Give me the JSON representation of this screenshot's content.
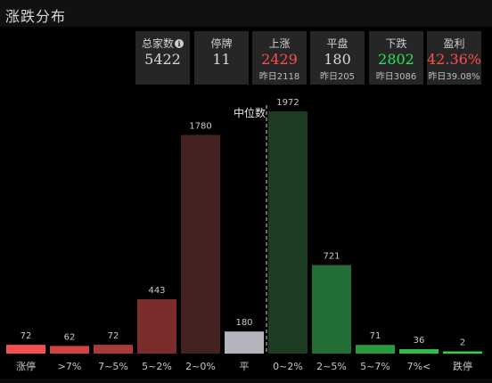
{
  "header": {
    "title": "涨跌分布"
  },
  "stats": [
    {
      "key": "total",
      "label": "总家数",
      "value": "5422",
      "sub": "",
      "color": "#d8d8d8",
      "info_icon": "info-icon"
    },
    {
      "key": "halted",
      "label": "停牌",
      "value": "11",
      "sub": "",
      "color": "#d8d8d8"
    },
    {
      "key": "up",
      "label": "上涨",
      "value": "2429",
      "sub": "昨日2118",
      "color": "#ff4d4d"
    },
    {
      "key": "flat",
      "label": "平盘",
      "value": "180",
      "sub": "昨日205",
      "color": "#d8d8d8"
    },
    {
      "key": "down",
      "label": "下跌",
      "value": "2802",
      "sub": "昨日3086",
      "color": "#33e060"
    },
    {
      "key": "profit",
      "label": "盈利",
      "value": "42.36%",
      "sub": "昨日39.08%",
      "color": "#ff4d4d"
    }
  ],
  "chart_data": {
    "type": "bar",
    "categories": [
      "涨停",
      ">7%",
      "7~5%",
      "5~2%",
      "2~0%",
      "平",
      "0~2%",
      "2~5%",
      "5~7%",
      "7%<",
      "跌停"
    ],
    "values": [
      72,
      62,
      72,
      443,
      1780,
      180,
      1972,
      721,
      71,
      36,
      2
    ],
    "colors": [
      "#f05050",
      "#d04444",
      "#a83a3a",
      "#7a2c2c",
      "#452222",
      "#b4b4bc",
      "#1b3c22",
      "#226e36",
      "#2a9a40",
      "#2fbe48",
      "#33d050"
    ],
    "ylim": [
      0,
      1972
    ],
    "median_label": "中位数",
    "median_category": "0~2%"
  }
}
